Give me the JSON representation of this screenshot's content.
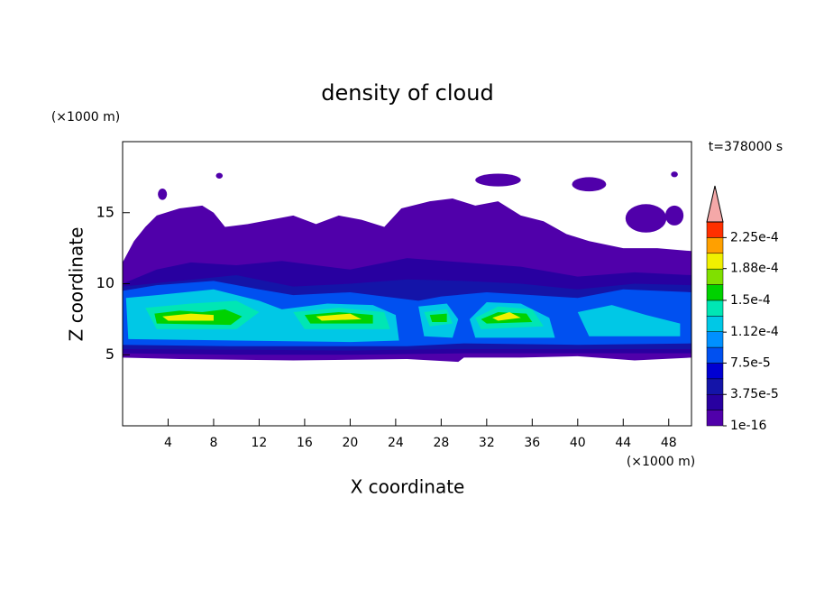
{
  "chart_data": {
    "type": "contour",
    "title": "density of cloud",
    "xlabel": "X coordinate",
    "ylabel": "Z coordinate",
    "x_unit": "(×1000 m)",
    "y_unit": "(×1000 m)",
    "time_label": "t=378000 s",
    "xlim": [
      0,
      50
    ],
    "ylim": [
      0,
      20
    ],
    "xticks": [
      4,
      8,
      12,
      16,
      20,
      24,
      28,
      32,
      36,
      40,
      44,
      48
    ],
    "yticks": [
      5,
      10,
      15
    ],
    "colorbar": {
      "lim": [
        1e-16,
        0.00024375
      ],
      "colors": [
        "#5000aa",
        "#2800a0",
        "#1414a8",
        "#0000d2",
        "#0050f0",
        "#0090ff",
        "#00c8e6",
        "#00e6b4",
        "#00d200",
        "#80e000",
        "#f0f000",
        "#ffa000",
        "#ff3000"
      ],
      "extend_color": "#f4a8a8",
      "ticks": [
        {
          "value": 1e-16,
          "label": "1e-16"
        },
        {
          "value": 3.75e-05,
          "label": "3.75e-5"
        },
        {
          "value": 7.5e-05,
          "label": "7.5e-5"
        },
        {
          "value": 0.000112,
          "label": "1.12e-4"
        },
        {
          "value": 0.00015,
          "label": "1.5e-4"
        },
        {
          "value": 0.000188,
          "label": "1.88e-4"
        },
        {
          "value": 0.000225,
          "label": "2.25e-4"
        }
      ]
    }
  }
}
